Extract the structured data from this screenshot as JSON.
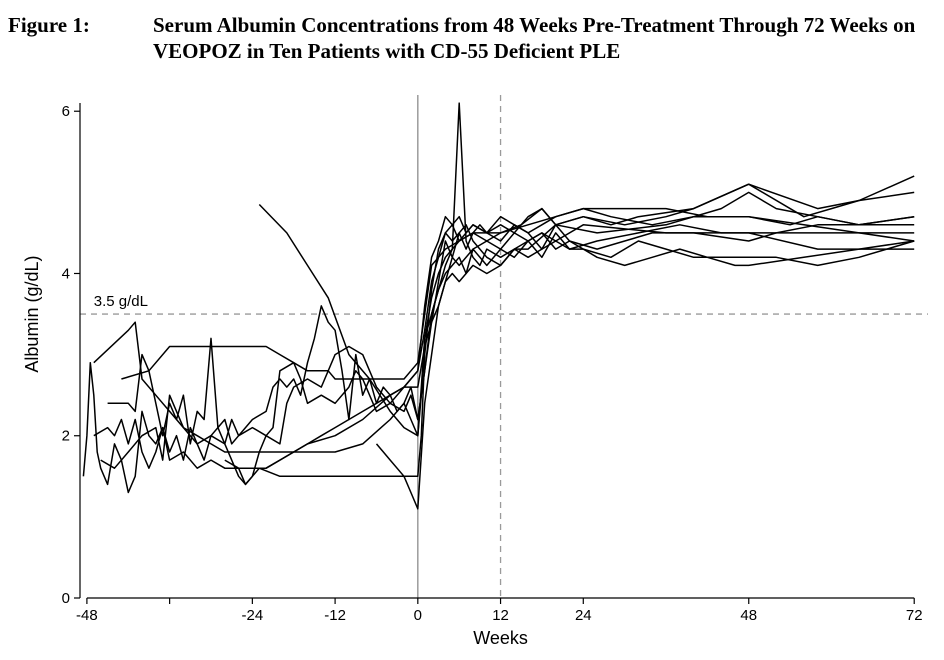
{
  "figure": {
    "label": "Figure 1:",
    "title": "Serum Albumin Concentrations from 48 Weeks Pre-Treatment Through 72 Weeks on VEOPOZ in Ten Patients with CD-55 Deficient PLE"
  },
  "chart_data": {
    "type": "line",
    "xlabel": "Weeks",
    "ylabel": "Albumin (g/dL)",
    "xlim": [
      -49,
      74
    ],
    "ylim": [
      0,
      6.2
    ],
    "x_ticks": [
      -48,
      -24,
      -12,
      0,
      12,
      24,
      48,
      72
    ],
    "x_minor_ticks": [
      -36
    ],
    "y_ticks": [
      0,
      2,
      4,
      6
    ],
    "grid": false,
    "reference_lines": [
      {
        "orientation": "horizontal",
        "value": 3.5,
        "label": "3.5 g/dL",
        "style": "dashed"
      },
      {
        "orientation": "vertical",
        "value": 0,
        "style": "solid"
      },
      {
        "orientation": "vertical",
        "value": 12,
        "style": "dashed"
      }
    ],
    "series": [
      {
        "x": [
          -48.5,
          -48,
          -47.5,
          -47,
          -46.5,
          -46,
          -45,
          -44,
          -43,
          -42,
          -41,
          -40,
          -39,
          -38,
          -37,
          -36,
          -35,
          -34,
          -33,
          -32,
          -31,
          -30,
          -29,
          -28,
          -27,
          -26,
          -25,
          -24,
          -23,
          -20,
          -15,
          -10,
          -6,
          -3,
          -1,
          0,
          0.5,
          1,
          2,
          3,
          4,
          5,
          6,
          7,
          8,
          10,
          12,
          14,
          16,
          18,
          20,
          24,
          36,
          48,
          58,
          72
        ],
        "y": [
          1.5,
          2.0,
          2.9,
          2.5,
          1.8,
          1.6,
          1.4,
          1.9,
          1.7,
          1.3,
          1.5,
          2.3,
          2.0,
          1.9,
          2.1,
          1.8,
          2.0,
          1.7,
          2.1,
          1.9,
          1.7,
          2.0,
          2.1,
          1.9,
          1.7,
          1.5,
          1.4,
          1.5,
          1.6,
          1.5,
          1.5,
          1.5,
          1.5,
          1.5,
          1.5,
          1.5,
          2.0,
          3.0,
          3.8,
          4.3,
          4.5,
          4.4,
          4.5,
          4.6,
          4.4,
          4.2,
          4.1,
          4.3,
          4.4,
          4.5,
          4.4,
          4.6,
          4.5,
          4.5,
          4.3,
          4.3
        ]
      },
      {
        "x": [
          -47,
          -45,
          -44,
          -43,
          -42,
          -41,
          -40,
          -39,
          -38,
          -37,
          -36,
          -34,
          -32,
          -30,
          -28,
          -26,
          -25,
          -24,
          -23,
          -22,
          -21,
          -20,
          -18,
          -17,
          -16,
          -14,
          -12,
          -10,
          -9,
          -8,
          -6,
          -4,
          -2,
          -1,
          0,
          1,
          2,
          3,
          4,
          5,
          6,
          8,
          10,
          12,
          15,
          18,
          22,
          26,
          34,
          40,
          48,
          52,
          58,
          64,
          72
        ],
        "y": [
          2.0,
          2.1,
          2.0,
          2.2,
          1.9,
          2.2,
          1.8,
          1.6,
          1.8,
          2.1,
          1.7,
          1.8,
          1.6,
          1.7,
          1.6,
          1.6,
          1.4,
          1.5,
          1.8,
          2.0,
          2.1,
          2.8,
          2.9,
          2.7,
          2.4,
          2.5,
          2.4,
          2.6,
          2.8,
          2.7,
          2.3,
          2.4,
          2.6,
          2.7,
          2.8,
          3.3,
          3.9,
          4.2,
          4.5,
          4.6,
          4.4,
          4.5,
          4.4,
          4.5,
          4.6,
          4.8,
          4.4,
          4.3,
          4.5,
          4.5,
          4.4,
          4.5,
          4.6,
          4.6,
          4.7
        ]
      },
      {
        "x": [
          -46,
          -44,
          -42,
          -40,
          -38,
          -37,
          -36,
          -34,
          -32,
          -30,
          -28,
          -27,
          -26,
          -25,
          -24,
          -22,
          -21,
          -20,
          -19,
          -18,
          -17,
          -16,
          -15,
          -14,
          -13,
          -12,
          -11,
          -10,
          -9,
          -8,
          -7,
          -6,
          -5,
          -4,
          -3,
          -2,
          -1,
          0,
          0.5,
          1,
          2,
          3,
          4,
          5,
          6,
          7,
          8,
          9,
          10,
          12,
          14,
          16,
          20,
          26,
          36,
          44,
          48,
          52,
          58,
          64,
          72
        ],
        "y": [
          1.7,
          1.6,
          1.8,
          2.0,
          2.1,
          1.7,
          2.5,
          2.1,
          1.9,
          2.0,
          1.9,
          2.2,
          2.0,
          2.1,
          2.2,
          2.3,
          2.6,
          2.7,
          2.6,
          2.7,
          2.5,
          2.9,
          3.2,
          3.6,
          3.4,
          3.3,
          2.8,
          2.2,
          3.0,
          2.5,
          2.7,
          2.4,
          2.6,
          2.5,
          2.3,
          2.4,
          2.2,
          2.0,
          2.6,
          3.2,
          3.7,
          4.0,
          4.2,
          4.3,
          6.1,
          4.4,
          4.2,
          4.1,
          4.3,
          4.2,
          4.3,
          4.3,
          4.6,
          4.5,
          4.6,
          4.8,
          5.0,
          4.8,
          4.7,
          4.6,
          4.7
        ]
      },
      {
        "x": [
          -45,
          -42,
          -41,
          -40,
          -39,
          -37,
          -36,
          -35,
          -34,
          -33,
          -32,
          -31,
          -30,
          -29,
          -28,
          -27,
          -26,
          -24,
          -22,
          -20,
          -19,
          -18,
          -16,
          -14,
          -12,
          -10,
          -8,
          -6,
          -4,
          -2,
          -1,
          0,
          1,
          2,
          3,
          4,
          5,
          6,
          7,
          8,
          9,
          10,
          12,
          14,
          16,
          18,
          20,
          24,
          28,
          32,
          40,
          48,
          58,
          64,
          72
        ],
        "y": [
          2.4,
          2.4,
          2.3,
          3.0,
          2.8,
          2.0,
          2.4,
          2.2,
          2.5,
          1.9,
          2.3,
          2.2,
          3.2,
          2.1,
          2.2,
          1.9,
          2.0,
          2.1,
          2.0,
          1.9,
          2.4,
          2.6,
          2.7,
          2.6,
          3.0,
          3.1,
          3.0,
          2.6,
          2.4,
          2.3,
          2.5,
          2.2,
          2.8,
          3.4,
          3.9,
          4.4,
          4.2,
          4.5,
          4.3,
          4.5,
          4.6,
          4.5,
          4.6,
          4.5,
          4.7,
          4.8,
          4.6,
          4.7,
          4.6,
          4.7,
          4.8,
          5.1,
          4.8,
          4.9,
          5.2
        ]
      },
      {
        "x": [
          -47,
          -42,
          -41,
          -40,
          -38,
          -36,
          -34,
          -32,
          -30,
          -28,
          -26,
          -24,
          -20,
          -16,
          -12,
          -8,
          -4,
          -2,
          -1,
          0,
          1,
          2,
          3,
          4,
          5,
          6,
          7,
          8,
          10,
          12,
          14,
          16,
          18,
          20,
          22,
          26,
          32,
          38,
          44,
          48,
          52,
          58,
          64,
          72
        ],
        "y": [
          2.9,
          3.3,
          3.4,
          2.7,
          2.5,
          2.3,
          2.1,
          2.0,
          1.9,
          1.8,
          1.8,
          1.8,
          1.8,
          1.8,
          1.8,
          1.9,
          2.2,
          2.4,
          2.6,
          2.2,
          2.8,
          3.5,
          3.8,
          4.0,
          4.1,
          4.2,
          4.0,
          4.3,
          4.1,
          4.3,
          4.5,
          4.4,
          4.2,
          4.5,
          4.3,
          4.4,
          4.5,
          4.6,
          4.5,
          4.5,
          4.5,
          4.5,
          4.5,
          4.5
        ]
      },
      {
        "x": [
          -43,
          -39,
          -36,
          -32,
          -28,
          -26,
          -24,
          -22,
          -20,
          -18,
          -16,
          -14,
          -13,
          -12,
          -10,
          -8,
          -6,
          -4,
          -2,
          0,
          1,
          2,
          3,
          4,
          6,
          8,
          10,
          12,
          16,
          20,
          24,
          30,
          36,
          42,
          48,
          56,
          64,
          72
        ],
        "y": [
          2.7,
          2.8,
          3.1,
          3.1,
          3.1,
          3.1,
          3.1,
          3.1,
          3.0,
          2.9,
          2.8,
          2.8,
          2.8,
          2.7,
          2.7,
          2.7,
          2.7,
          2.7,
          2.7,
          2.9,
          3.5,
          4.1,
          4.2,
          4.3,
          4.4,
          4.5,
          4.5,
          4.5,
          4.6,
          4.7,
          4.8,
          4.8,
          4.8,
          4.7,
          4.7,
          4.6,
          4.5,
          4.4
        ]
      },
      {
        "x": [
          -28,
          -26,
          -24,
          -22,
          -20,
          -18,
          -16,
          -12,
          -8,
          -4,
          -2,
          0,
          1,
          2,
          3,
          4,
          5,
          6,
          7,
          8,
          10,
          12,
          14,
          16,
          18,
          20,
          24,
          30,
          36,
          40,
          48,
          56,
          60,
          64,
          72
        ],
        "y": [
          1.7,
          1.6,
          1.6,
          1.6,
          1.7,
          1.8,
          1.9,
          2.0,
          2.2,
          2.5,
          2.6,
          2.8,
          3.6,
          4.2,
          4.4,
          4.7,
          4.6,
          4.7,
          4.5,
          4.6,
          4.5,
          4.4,
          4.6,
          4.5,
          4.3,
          4.6,
          4.7,
          4.6,
          4.7,
          4.8,
          5.1,
          4.7,
          4.8,
          4.9,
          5.0
        ]
      },
      {
        "x": [
          -22,
          -20,
          -18,
          -16,
          -14,
          -12,
          -10,
          -8,
          -6,
          -4,
          -2,
          0,
          1,
          2,
          3,
          4,
          5,
          6,
          8,
          10,
          12,
          14,
          16,
          18,
          20,
          22,
          24,
          28,
          32,
          36,
          40,
          48,
          52,
          58,
          64,
          72
        ],
        "y": [
          1.6,
          1.7,
          1.8,
          1.9,
          2.0,
          2.1,
          2.2,
          2.3,
          2.4,
          2.5,
          2.6,
          2.6,
          3.1,
          3.4,
          3.6,
          3.9,
          4.0,
          3.9,
          4.1,
          4.0,
          4.1,
          4.3,
          4.2,
          4.3,
          4.4,
          4.3,
          4.3,
          4.2,
          4.4,
          4.3,
          4.2,
          4.2,
          4.2,
          4.1,
          4.2,
          4.4
        ]
      },
      {
        "x": [
          -23,
          -19,
          -16,
          -13,
          -10,
          -7,
          -4,
          -2,
          0,
          0.5,
          1,
          2,
          3,
          4,
          5,
          6,
          8,
          10,
          12,
          14,
          16,
          18,
          20,
          24,
          28,
          34,
          40,
          48,
          54,
          58,
          64,
          72
        ],
        "y": [
          4.85,
          4.5,
          4.1,
          3.7,
          3.0,
          2.7,
          2.3,
          2.1,
          2.0,
          2.5,
          3.2,
          3.5,
          3.8,
          4.1,
          4.3,
          4.4,
          4.6,
          4.5,
          4.7,
          4.6,
          4.5,
          4.6,
          4.7,
          4.8,
          4.7,
          4.6,
          4.7,
          4.7,
          4.6,
          4.7,
          4.6,
          4.6
        ]
      },
      {
        "x": [
          -6,
          -4,
          -2,
          -1,
          0,
          1,
          2,
          3,
          4,
          5,
          6,
          8,
          10,
          12,
          14,
          16,
          18,
          20,
          22,
          24,
          26,
          30,
          34,
          38,
          42,
          46,
          48,
          56,
          64,
          72
        ],
        "y": [
          1.9,
          1.7,
          1.5,
          1.3,
          1.1,
          2.4,
          3.0,
          3.6,
          3.9,
          4.2,
          4.1,
          4.3,
          4.4,
          4.3,
          4.2,
          4.4,
          4.5,
          4.3,
          4.4,
          4.3,
          4.2,
          4.1,
          4.2,
          4.3,
          4.2,
          4.1,
          4.1,
          4.2,
          4.3,
          4.4
        ]
      }
    ]
  }
}
